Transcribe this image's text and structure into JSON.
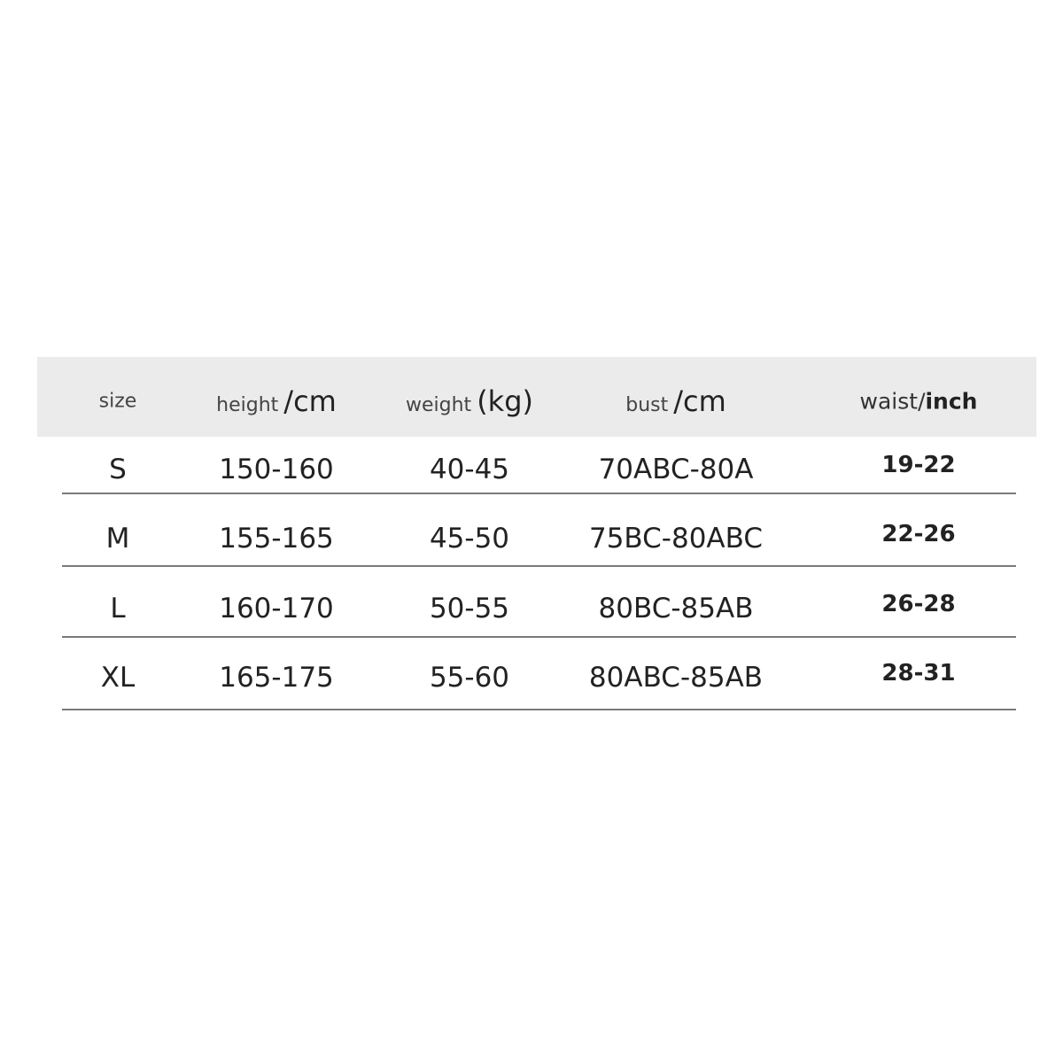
{
  "table": {
    "header": [
      {
        "label": "size"
      },
      {
        "label": "height",
        "unit": "/cm"
      },
      {
        "label": "weight",
        "unit": "(kg)"
      },
      {
        "label": "bust",
        "unit": "/cm"
      },
      {
        "label": "waist/",
        "unit": "inch"
      }
    ],
    "rows": [
      [
        "S",
        "150-160",
        "40-45",
        "70ABC-80A",
        "19-22"
      ],
      [
        "M",
        "155-165",
        "45-50",
        "75BC-80ABC",
        "22-26"
      ],
      [
        "L",
        "160-170",
        "50-55",
        "80BC-85AB",
        "26-28"
      ],
      [
        "XL",
        "165-175",
        "55-60",
        "80ABC-85AB",
        "28-31"
      ]
    ]
  }
}
